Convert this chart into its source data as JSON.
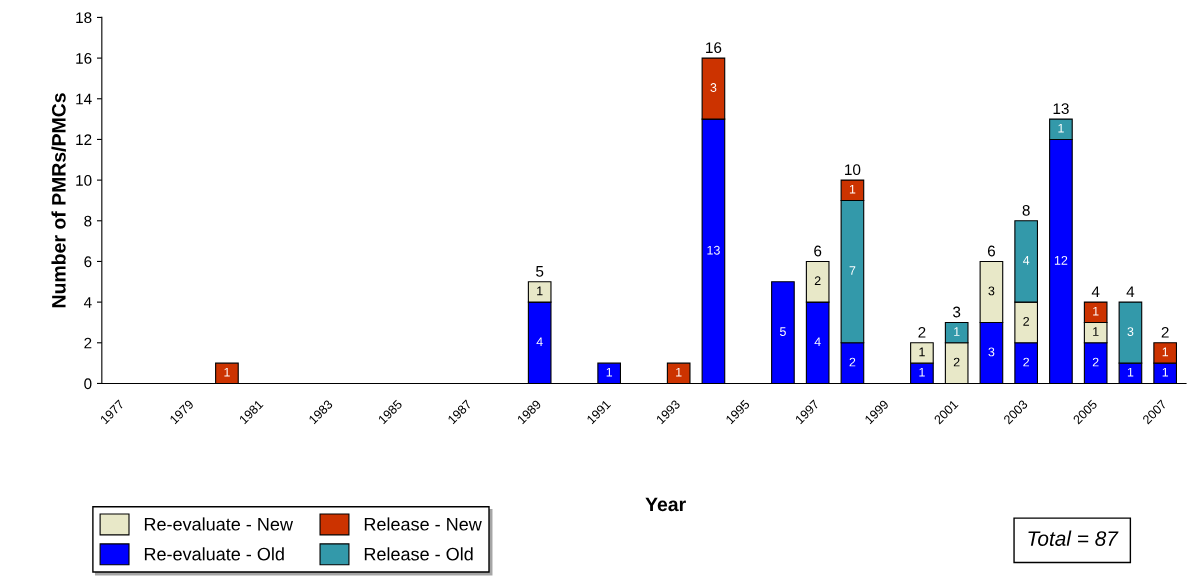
{
  "chart_data": {
    "type": "bar",
    "stacked": true,
    "ylabel": "Number of PMRs/PMCs",
    "xlabel": "Year",
    "categories": [
      "1977",
      null,
      "1979",
      null,
      "1981",
      null,
      "1983",
      null,
      "1985",
      null,
      "1987",
      null,
      "1989",
      null,
      "1991",
      null,
      "1993",
      null,
      "1995",
      null,
      "1997",
      null,
      "1999",
      null,
      "2001",
      null,
      "2003",
      null,
      "2005",
      null,
      "2007"
    ],
    "series": [
      {
        "name": "Re-evaluate - Old",
        "color": "#0000ff",
        "values": [
          null,
          null,
          null,
          null,
          null,
          null,
          null,
          null,
          null,
          null,
          null,
          null,
          4,
          null,
          1,
          null,
          null,
          13,
          null,
          5,
          4,
          2,
          null,
          1,
          null,
          3,
          2,
          12,
          2,
          1,
          1
        ]
      },
      {
        "name": "Re-evaluate - New",
        "color": "#e8e8c8",
        "values": [
          null,
          null,
          null,
          null,
          null,
          null,
          null,
          null,
          null,
          null,
          null,
          null,
          1,
          null,
          null,
          null,
          null,
          null,
          null,
          null,
          2,
          null,
          null,
          1,
          2,
          3,
          2,
          null,
          1,
          null,
          null
        ]
      },
      {
        "name": "Release - Old",
        "color": "#3399aa",
        "values": [
          null,
          null,
          null,
          null,
          null,
          null,
          null,
          null,
          null,
          null,
          null,
          null,
          null,
          null,
          null,
          null,
          null,
          null,
          null,
          null,
          null,
          7,
          null,
          null,
          1,
          null,
          4,
          1,
          null,
          3,
          null
        ]
      },
      {
        "name": "Release - New",
        "color": "#cc3300",
        "values": [
          null,
          null,
          null,
          1,
          null,
          null,
          null,
          null,
          null,
          null,
          null,
          null,
          null,
          null,
          null,
          null,
          1,
          3,
          null,
          null,
          null,
          1,
          null,
          null,
          null,
          null,
          null,
          null,
          1,
          null,
          1
        ]
      }
    ],
    "totals": [
      null,
      null,
      null,
      null,
      null,
      null,
      null,
      null,
      null,
      null,
      null,
      null,
      "5",
      null,
      null,
      null,
      null,
      "16",
      null,
      null,
      "6",
      "10",
      null,
      "2",
      "3",
      "6",
      "8",
      "13",
      "4",
      "4",
      "2"
    ],
    "data_labels": true,
    "ylim": [
      0,
      18
    ],
    "yticks": [
      0,
      2,
      4,
      6,
      8,
      10,
      12,
      14,
      16,
      18
    ],
    "grid": false,
    "legend": "bottom left",
    "annotations": [
      "Total = 87"
    ]
  }
}
